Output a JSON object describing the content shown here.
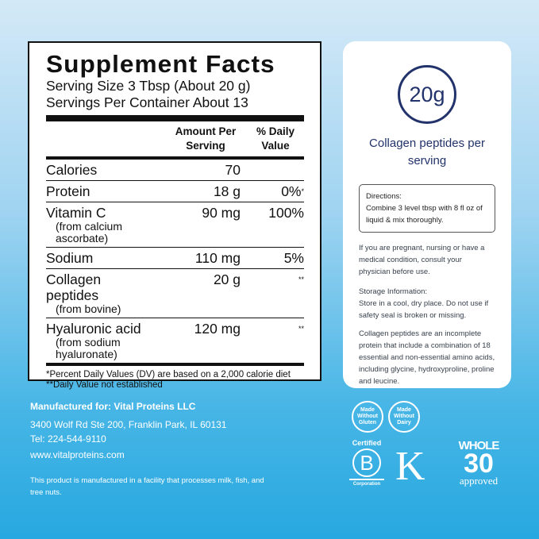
{
  "facts": {
    "title": "Supplement Facts",
    "serving_size": "Serving Size 3 Tbsp (About 20 g)",
    "servings_per_container": "Servings Per Container About 13",
    "col_amount": "Amount Per Serving",
    "col_dv": "% Daily Value",
    "rows": [
      {
        "name": "Calories",
        "sub": "",
        "amount": "70",
        "dv": "",
        "mark": ""
      },
      {
        "name": "Protein",
        "sub": "",
        "amount": "18 g",
        "dv": "0%",
        "mark": "*"
      },
      {
        "name": "Vitamin C",
        "sub": "(from calcium ascorbate)",
        "amount": "90 mg",
        "dv": "100%",
        "mark": ""
      },
      {
        "name": "Sodium",
        "sub": "",
        "amount": "110 mg",
        "dv": "5%",
        "mark": ""
      },
      {
        "name": "Collagen peptides",
        "sub": "(from bovine)",
        "amount": "20 g",
        "dv": "",
        "mark": "**"
      },
      {
        "name": "Hyaluronic acid",
        "sub": "(from sodium hyaluronate)",
        "amount": "120 mg",
        "dv": "",
        "mark": "**"
      }
    ],
    "footnote1": "*Percent Daily Values (DV) are based on a 2,000 calorie diet",
    "footnote2": "**Daily Value not established"
  },
  "card": {
    "amount": "20g",
    "label": "Collagen peptides per serving",
    "directions_title": "Directions:",
    "directions": "Combine 3 level tbsp with 8 fl oz of liquid & mix thoroughly.",
    "warning": "If you are pregnant, nursing or have a medical condition, consult your physician before use.",
    "storage_title": "Storage Information:",
    "storage": "Store in a cool, dry place. Do not use if safety seal is broken or missing.",
    "note": "Collagen peptides are an incomplete protein that include a combination of 18 essential and non-essential amino acids, including glycine, hydroxyproline, proline and leucine."
  },
  "maker": {
    "line1": "Manufactured for: Vital Proteins LLC",
    "line2": "3400 Wolf Rd Ste 200, Franklin Park, IL 60131",
    "line3": "Tel: 224-544-9110",
    "line4": "www.vitalproteins.com",
    "allergen": "This product is manufactured in a facility that processes milk, fish, and tree nuts."
  },
  "badges": {
    "gluten": "Made Without Gluten",
    "dairy": "Made Without Dairy",
    "bcorp_top": "Certified",
    "bcorp_letter": "B",
    "bcorp_bottom": "Corporation",
    "kosher": "K",
    "whole_top": "WHOLE",
    "whole_num": "30",
    "whole_bottom": "approved"
  }
}
